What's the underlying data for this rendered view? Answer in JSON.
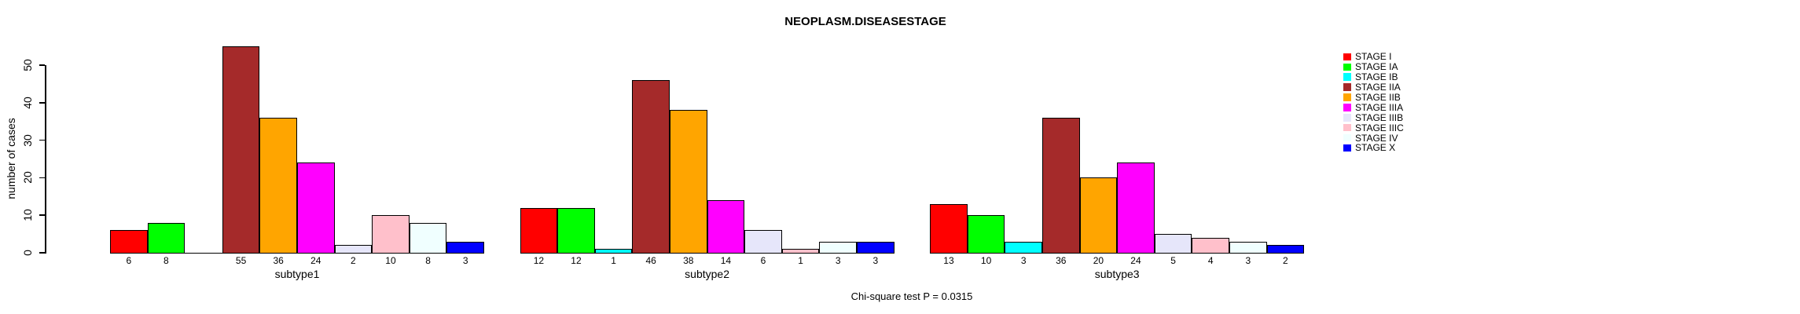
{
  "chart_data": {
    "type": "bar",
    "title": "NEOPLASM.DISEASESTAGE",
    "ylabel": "number of cases",
    "note": "Chi-square test P = 0.0315",
    "groups": [
      "subtype1",
      "subtype2",
      "subtype3"
    ],
    "yticks": [
      0,
      10,
      20,
      30,
      40,
      50
    ],
    "ylim": [
      0,
      55
    ],
    "grid": false,
    "legend_position": "right",
    "bar_value_labels": true,
    "zero_value_labels_hidden": true,
    "series": [
      {
        "name": "STAGE I",
        "color": "#FF0000",
        "values": [
          6,
          12,
          13
        ]
      },
      {
        "name": "STAGE IA",
        "color": "#00FF00",
        "values": [
          8,
          12,
          10
        ]
      },
      {
        "name": "STAGE IB",
        "color": "#00FFFF",
        "values": [
          0,
          1,
          3
        ]
      },
      {
        "name": "STAGE IIA",
        "color": "#A52A2A",
        "values": [
          55,
          46,
          36
        ]
      },
      {
        "name": "STAGE IIB",
        "color": "#FFA500",
        "values": [
          36,
          38,
          20
        ]
      },
      {
        "name": "STAGE IIIA",
        "color": "#FF00FF",
        "values": [
          24,
          14,
          24
        ]
      },
      {
        "name": "STAGE IIIB",
        "color": "#E6E6FA",
        "values": [
          2,
          6,
          5
        ]
      },
      {
        "name": "STAGE IIIC",
        "color": "#FFC0CB",
        "values": [
          10,
          1,
          4
        ]
      },
      {
        "name": "STAGE IV",
        "color": "#F0FFFF",
        "values": [
          8,
          3,
          3
        ]
      },
      {
        "name": "STAGE X",
        "color": "#0000FF",
        "values": [
          3,
          3,
          2
        ]
      }
    ]
  }
}
